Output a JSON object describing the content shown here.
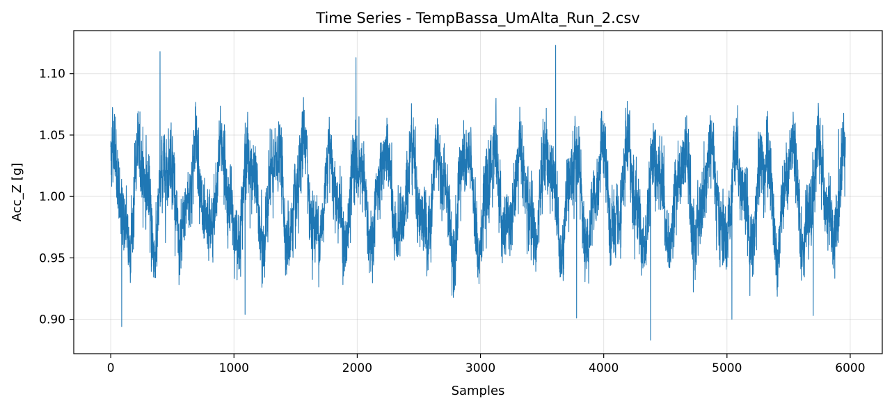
{
  "chart_data": {
    "type": "line",
    "title": "Time Series - TempBassa_UmAlta_Run_2.csv",
    "xlabel": "Samples",
    "ylabel": "Acc_Z [g]",
    "xlim": [
      -300,
      6260
    ],
    "ylim": [
      0.872,
      1.135
    ],
    "xticks": [
      0,
      1000,
      2000,
      3000,
      4000,
      5000,
      6000
    ],
    "xtick_labels": [
      "0",
      "1000",
      "2000",
      "3000",
      "4000",
      "5000",
      "6000"
    ],
    "yticks": [
      0.9,
      0.95,
      1.0,
      1.05,
      1.1
    ],
    "ytick_labels": [
      "0.90",
      "0.95",
      "1.00",
      "1.05",
      "1.10"
    ],
    "grid": true,
    "series": [
      {
        "color": "#1f77b4",
        "n_samples": 5963,
        "mean": 1.0,
        "period_samples": 220,
        "oscillation_amplitude": 0.035,
        "noise_std": 0.022,
        "peak_values": [
          {
            "x": 400,
            "y": 1.118
          },
          {
            "x": 3610,
            "y": 1.123
          },
          {
            "x": 1990,
            "y": 1.113
          },
          {
            "x": 89,
            "y": 0.894
          },
          {
            "x": 4380,
            "y": 0.883
          },
          {
            "x": 1090,
            "y": 0.904
          },
          {
            "x": 3780,
            "y": 0.901
          },
          {
            "x": 5040,
            "y": 0.9
          },
          {
            "x": 5700,
            "y": 0.903
          }
        ]
      }
    ]
  }
}
